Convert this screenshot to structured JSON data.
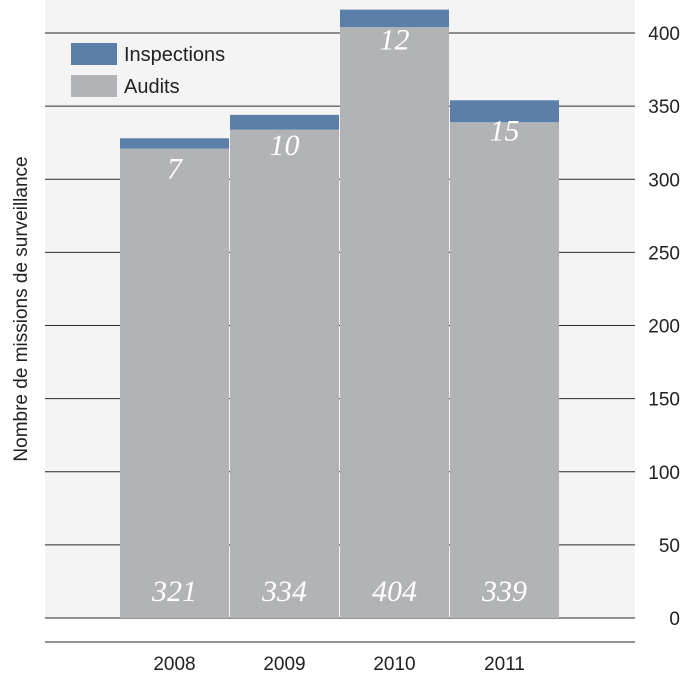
{
  "chart_data": {
    "type": "bar",
    "stacked": true,
    "categories": [
      "2008",
      "2009",
      "2010",
      "2011"
    ],
    "series": [
      {
        "name": "Audits",
        "values": [
          321,
          334,
          404,
          339
        ],
        "color": "#b1b3b6"
      },
      {
        "name": "Inspections",
        "values": [
          7,
          10,
          12,
          15
        ],
        "color": "#5b7fa9"
      }
    ],
    "title": "",
    "xlabel": "",
    "ylabel": "Nombre de missions de surveillance",
    "ylim": [
      0,
      400
    ],
    "yticks": [
      0,
      50,
      100,
      150,
      200,
      250,
      300,
      350,
      400
    ],
    "y_axis_side": "right",
    "grid": true,
    "legend": "top-left",
    "background_color": "#f4f4f4"
  }
}
